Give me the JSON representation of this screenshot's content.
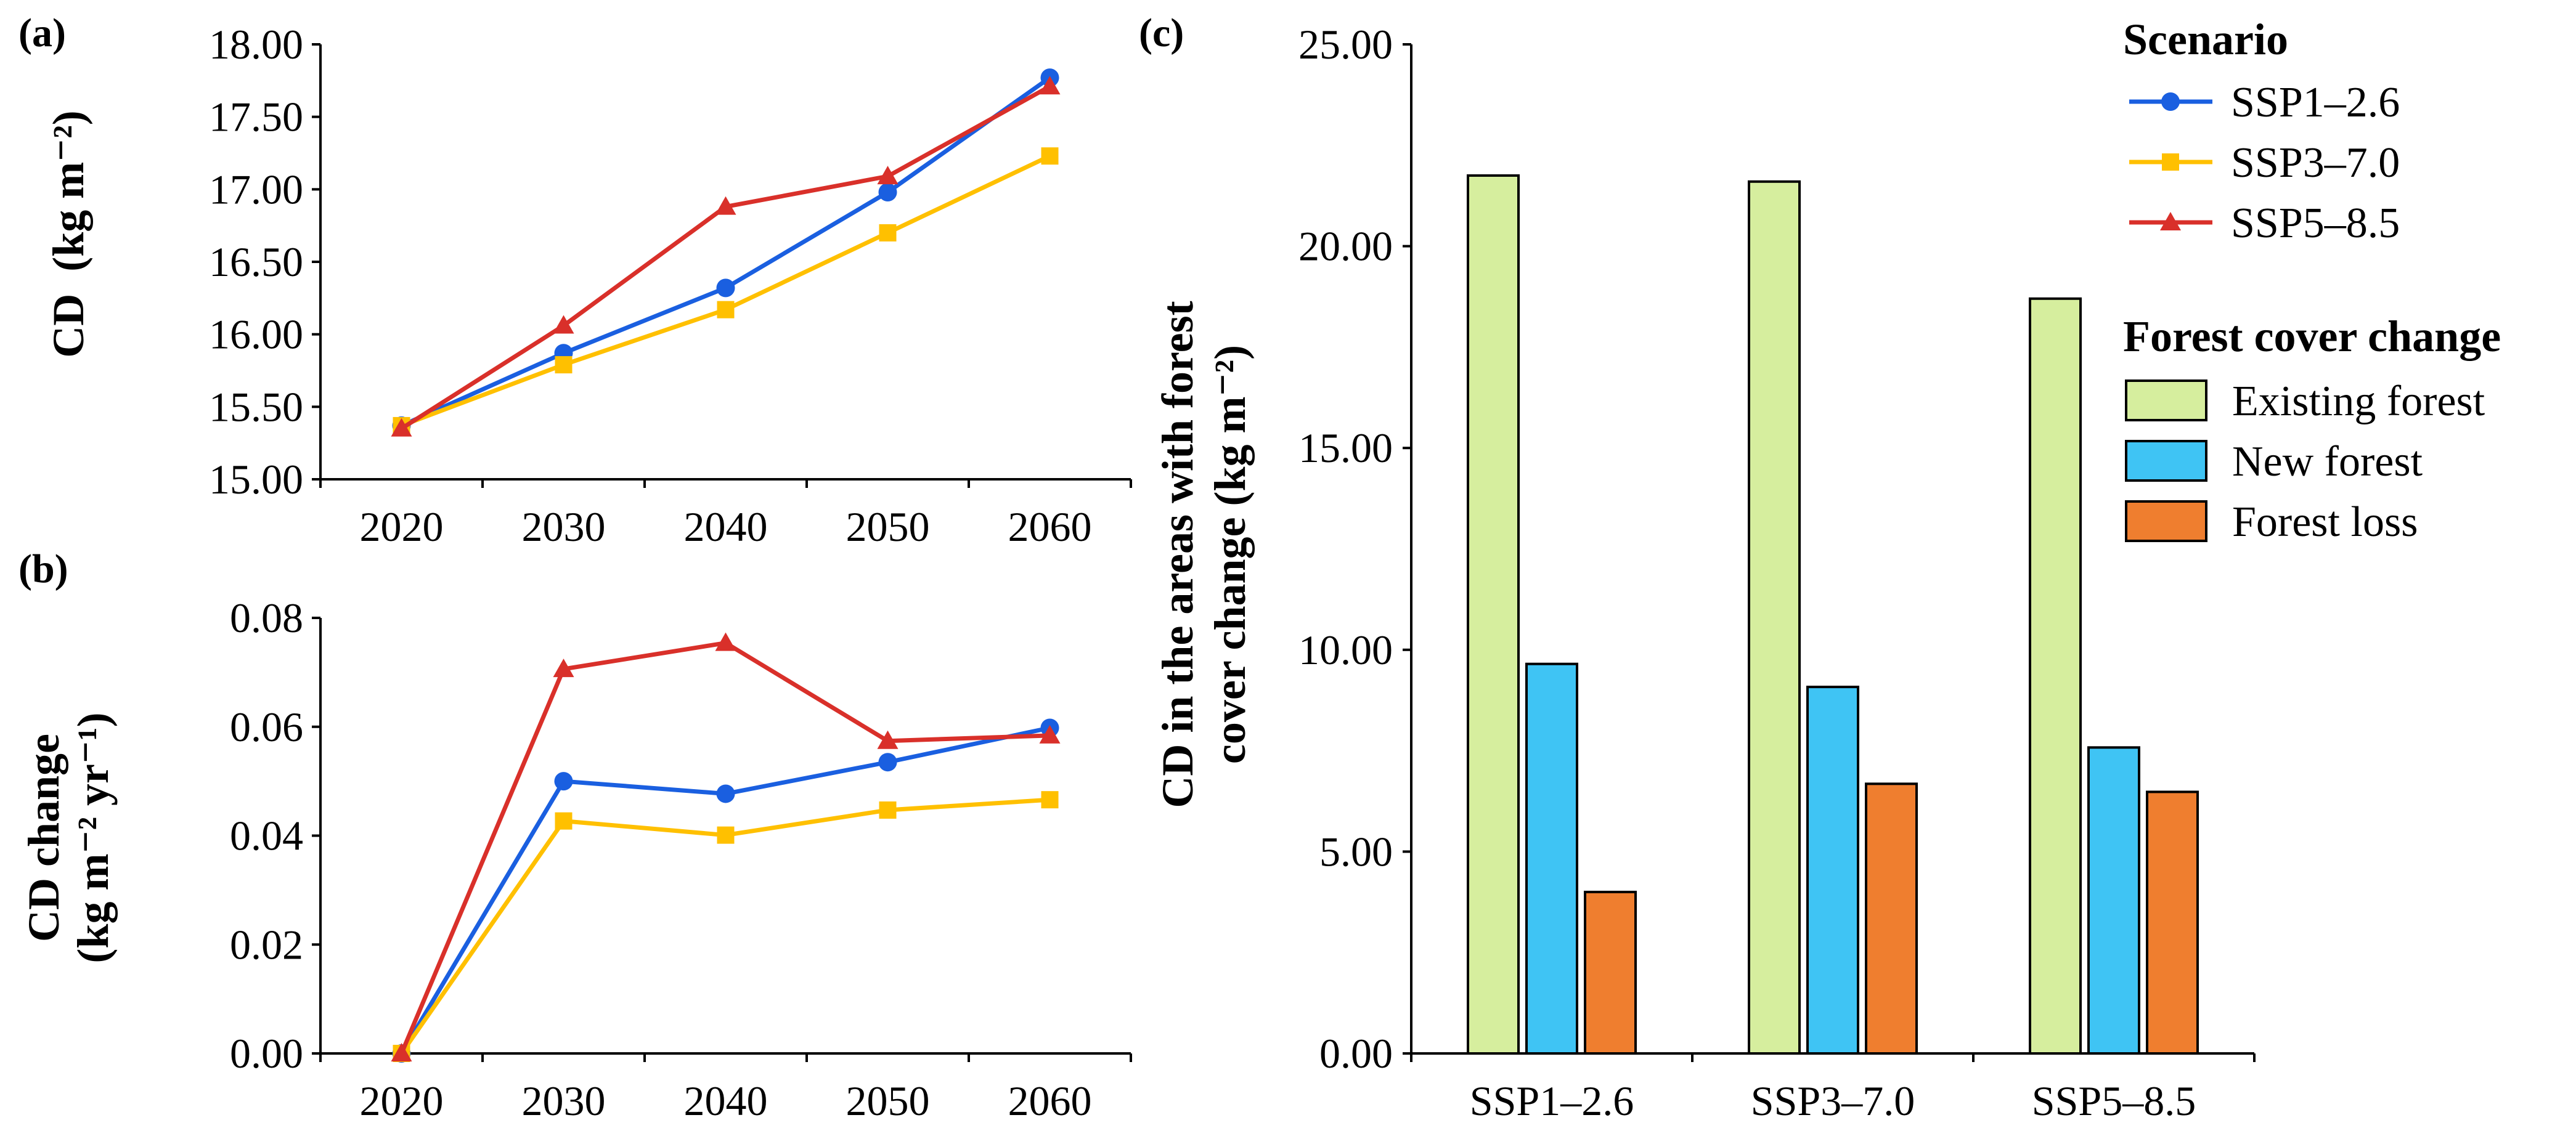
{
  "colors": {
    "ssp126": "#1a5fe0",
    "ssp370": "#ffc000",
    "ssp585": "#d9302a",
    "existing": "#d6ee9e",
    "new": "#3fc4f4",
    "loss": "#ef7e2f"
  },
  "chart_data": [
    {
      "panel": "(a)",
      "type": "line",
      "x": [
        2020,
        2030,
        2040,
        2050,
        2060
      ],
      "xticks": [
        "2020",
        "2030",
        "2040",
        "2050",
        "2060"
      ],
      "ylabel_main": "CD",
      "ylabel_unit": "(kg m⁻²)",
      "ylim": [
        15.0,
        18.0
      ],
      "yticks": [
        "15.00",
        "15.50",
        "16.00",
        "16.50",
        "17.00",
        "17.50",
        "18.00"
      ],
      "series": [
        {
          "name": "SSP1–2.6",
          "color_key": "ssp126",
          "marker": "circle",
          "values": [
            15.37,
            15.87,
            16.32,
            16.98,
            17.77
          ]
        },
        {
          "name": "SSP3–7.0",
          "color_key": "ssp370",
          "marker": "square",
          "values": [
            15.37,
            15.79,
            16.17,
            16.7,
            17.23
          ]
        },
        {
          "name": "SSP5–8.5",
          "color_key": "ssp585",
          "marker": "triangle",
          "values": [
            15.35,
            16.06,
            16.88,
            17.09,
            17.71
          ]
        }
      ]
    },
    {
      "panel": "(b)",
      "type": "line",
      "x": [
        2020,
        2030,
        2040,
        2050,
        2060
      ],
      "xticks": [
        "2020",
        "2030",
        "2040",
        "2050",
        "2060"
      ],
      "ylabel_main": "CD change",
      "ylabel_unit": "(kg m⁻² yr⁻¹)",
      "ylim": [
        0.0,
        0.08
      ],
      "yticks": [
        "0.00",
        "0.02",
        "0.04",
        "0.06",
        "0.08"
      ],
      "series": [
        {
          "name": "SSP1–2.6",
          "color_key": "ssp126",
          "marker": "circle",
          "values": [
            0.0,
            0.05,
            0.0477,
            0.0535,
            0.0598
          ]
        },
        {
          "name": "SSP3–7.0",
          "color_key": "ssp370",
          "marker": "square",
          "values": [
            0.0,
            0.0427,
            0.0401,
            0.0447,
            0.0466
          ]
        },
        {
          "name": "SSP5–8.5",
          "color_key": "ssp585",
          "marker": "triangle",
          "values": [
            0.0,
            0.0706,
            0.0754,
            0.0574,
            0.0584
          ]
        }
      ]
    },
    {
      "panel": "(c)",
      "type": "bar",
      "categories": [
        "SSP1–2.6",
        "SSP3–7.0",
        "SSP5–8.5"
      ],
      "ylabel_line1": "CD in the areas with forest",
      "ylabel_line2": "cover change (kg m⁻²)",
      "ylim": [
        0.0,
        25.0
      ],
      "yticks": [
        "0.00",
        "5.00",
        "10.00",
        "15.00",
        "20.00",
        "25.00"
      ],
      "series": [
        {
          "name": "Existing forest",
          "color_key": "existing",
          "values": [
            21.75,
            21.6,
            18.7
          ]
        },
        {
          "name": "New forest",
          "color_key": "new",
          "values": [
            9.65,
            9.08,
            7.58
          ]
        },
        {
          "name": "Forest loss",
          "color_key": "loss",
          "values": [
            4.0,
            6.68,
            6.48
          ]
        }
      ]
    }
  ],
  "legend": {
    "scenario_title": "Scenario",
    "forest_title": "Forest cover change"
  }
}
